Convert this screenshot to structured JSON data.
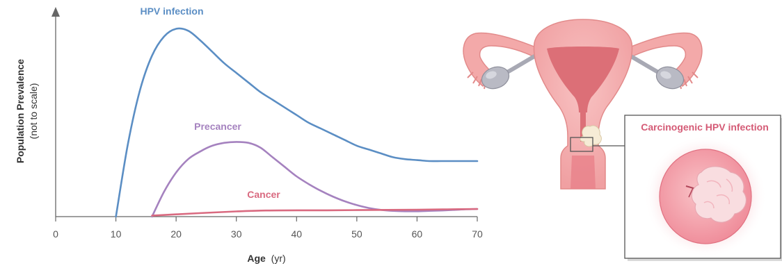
{
  "chart_data": {
    "type": "line",
    "xlabel": "Age",
    "xlabel_unit": "(yr)",
    "ylabel": "Population Prevalence",
    "ylabel_note": "(not to scale)",
    "xlim": [
      0,
      70
    ],
    "ylim": [
      0,
      100
    ],
    "x_ticks": [
      "0",
      "10",
      "20",
      "30",
      "40",
      "50",
      "60",
      "70"
    ],
    "grid": false,
    "series": [
      {
        "name": "HPV infection",
        "color": "#5b8ec4",
        "x": [
          10,
          12,
          14,
          16,
          18,
          20,
          22,
          24,
          26,
          28,
          30,
          32,
          34,
          36,
          38,
          40,
          42,
          44,
          46,
          48,
          50,
          52,
          54,
          56,
          58,
          60,
          62,
          64,
          66,
          68,
          70
        ],
        "y": [
          0,
          38,
          66,
          84,
          94,
          98,
          97,
          92,
          86,
          80,
          75,
          70,
          65,
          61,
          57,
          53,
          49,
          46,
          43,
          40,
          37,
          35,
          33,
          31,
          30,
          29.5,
          29,
          29,
          29,
          29,
          29
        ]
      },
      {
        "name": "Precancer",
        "color": "#a582bf",
        "x": [
          16,
          18,
          20,
          22,
          24,
          26,
          28,
          30,
          32,
          34,
          36,
          38,
          40,
          42,
          44,
          46,
          48,
          50,
          52,
          54,
          56,
          58,
          60,
          62,
          64,
          66,
          68,
          70
        ],
        "y": [
          0,
          13,
          23,
          30,
          34,
          37,
          38.5,
          39,
          38.5,
          36,
          31,
          26,
          21,
          17,
          13.5,
          10.5,
          8,
          6,
          4.5,
          3.5,
          3,
          2.8,
          2.8,
          3,
          3.2,
          3.5,
          3.8,
          4
        ]
      },
      {
        "name": "Cancer",
        "color": "#d96a80",
        "x": [
          16,
          20,
          25,
          30,
          35,
          40,
          45,
          50,
          55,
          60,
          65,
          70
        ],
        "y": [
          0.5,
          1.2,
          2,
          2.7,
          3.2,
          3.3,
          3.3,
          3.4,
          3.5,
          3.6,
          3.8,
          4
        ]
      }
    ]
  },
  "inset": {
    "title": "Carcinogenic HPV infection"
  },
  "colors": {
    "axis": "#666666",
    "uterus_fill": "#f3a9a9",
    "uterus_outline": "#e28a8a",
    "uterus_inner": "#dc6f77",
    "ovary": "#b9bac4",
    "lesion": "#f6ecd6",
    "inset_border": "#555555"
  }
}
